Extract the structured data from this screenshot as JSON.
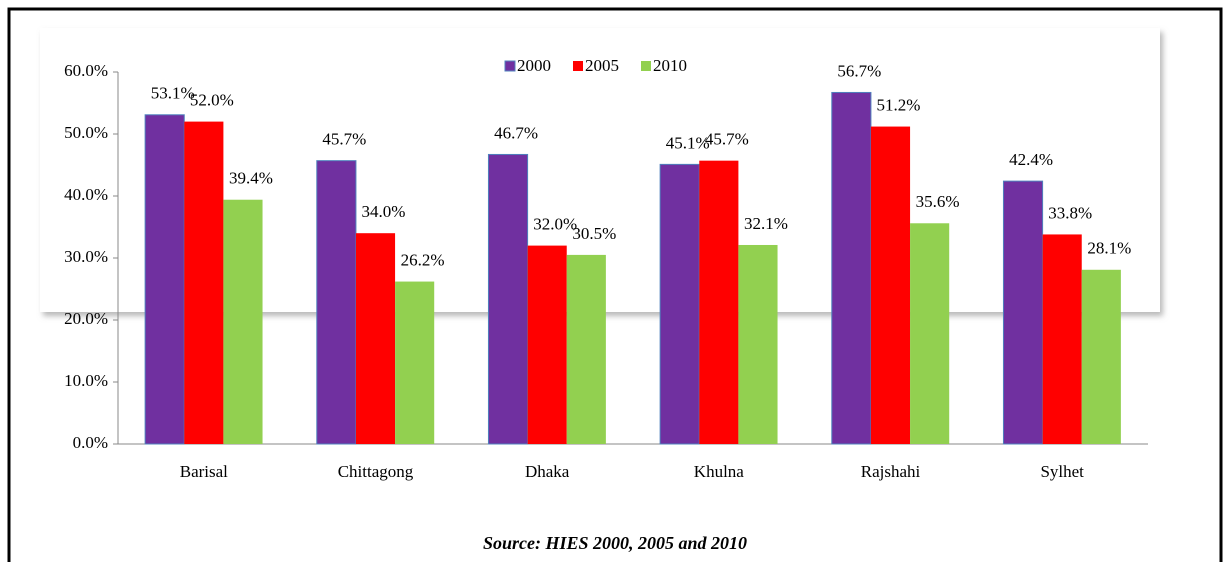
{
  "chart_data": {
    "type": "bar",
    "categories": [
      "Barisal",
      "Chittagong",
      "Dhaka",
      "Khulna",
      "Rajshahi",
      "Sylhet"
    ],
    "series": [
      {
        "name": "2000",
        "color": "#7030a0",
        "values": [
          53.1,
          45.7,
          46.7,
          45.1,
          56.7,
          42.4
        ],
        "value_labels": [
          "53.1%",
          "45.7%",
          "46.7%",
          "45.1%",
          "56.7%",
          "42.4%"
        ]
      },
      {
        "name": "2005",
        "color": "#ff0000",
        "values": [
          52.0,
          34.0,
          32.0,
          45.7,
          51.2,
          33.8
        ],
        "value_labels": [
          "52.0%",
          "34.0%",
          "32.0%",
          "45.7%",
          "51.2%",
          "33.8%"
        ]
      },
      {
        "name": "2010",
        "color": "#92d050",
        "values": [
          39.4,
          26.2,
          30.5,
          32.1,
          35.6,
          28.1
        ],
        "value_labels": [
          "39.4%",
          "26.2%",
          "30.5%",
          "32.1%",
          "35.6%",
          "28.1%"
        ]
      }
    ],
    "ylim": [
      0,
      60
    ],
    "yticks": [
      {
        "value": 0,
        "label": "0.0%"
      },
      {
        "value": 10,
        "label": "10.0%"
      },
      {
        "value": 20,
        "label": "20.0%"
      },
      {
        "value": 30,
        "label": "30.0%"
      },
      {
        "value": 40,
        "label": "40.0%"
      },
      {
        "value": 50,
        "label": "50.0%"
      },
      {
        "value": 60,
        "label": "60.0%"
      }
    ],
    "grid": false,
    "legend": "top",
    "source": "Source: HIES 2000, 2005 and 2010"
  }
}
